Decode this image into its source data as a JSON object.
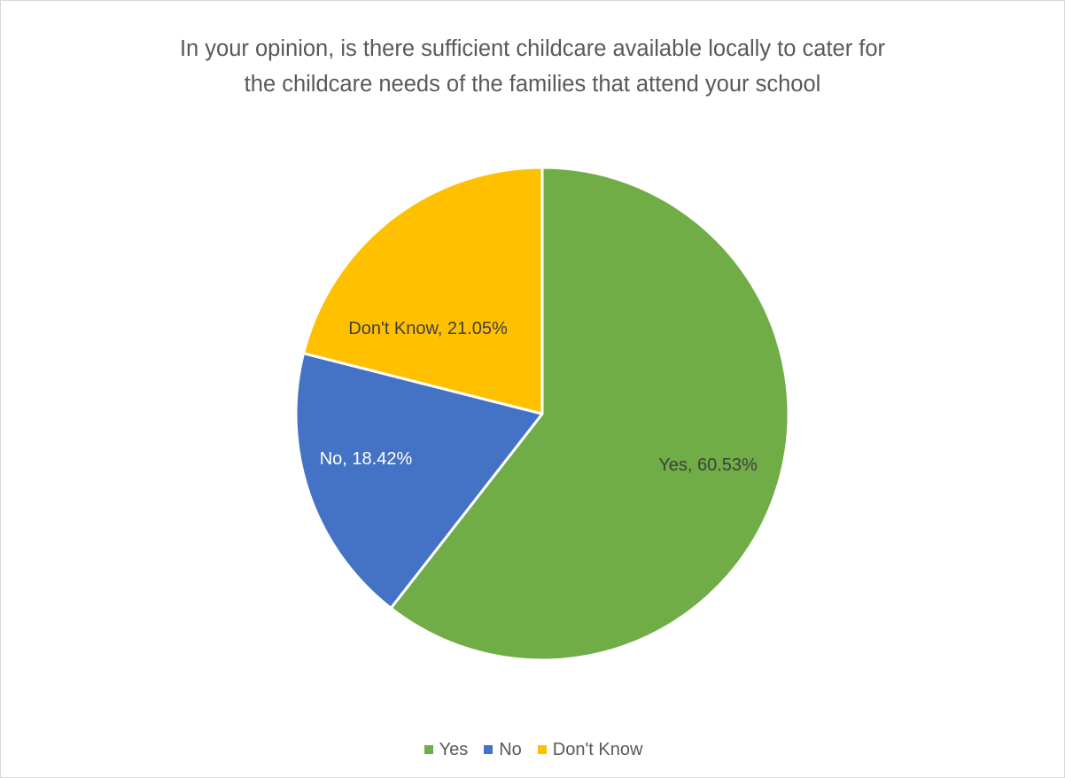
{
  "chart_data": {
    "type": "pie",
    "title_lines": [
      "In your opinion, is there sufficient childcare available locally to cater for",
      "the childcare needs of the families that attend your school"
    ],
    "slices": [
      {
        "name": "Yes",
        "value": 60.53,
        "label": "Yes, 60.53%",
        "color": "#70ad47",
        "label_color": "#404040"
      },
      {
        "name": "No",
        "value": 18.42,
        "label": "No, 18.42%",
        "color": "#4472c4",
        "label_color": "#ffffff"
      },
      {
        "name": "Don't Know",
        "value": 21.05,
        "label": "Don't Know, 21.05%",
        "color": "#ffc000",
        "label_color": "#404040"
      }
    ],
    "legend_position": "bottom",
    "start_angle": "12 o'clock",
    "direction": "clockwise"
  }
}
